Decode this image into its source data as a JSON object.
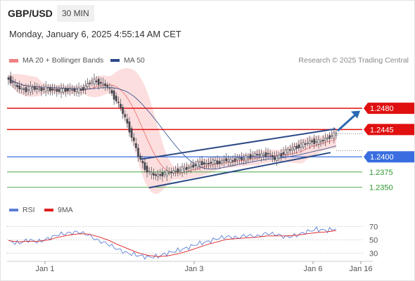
{
  "header": {
    "symbol": "GBP/USD",
    "timeframe": "30 MIN",
    "datetime": "Monday, January 6, 2025 4:55:14 AM CET"
  },
  "legend": {
    "ma20_label": "MA 20 + Bollinger Bands",
    "ma20_color": "#f08080",
    "ma50_label": "MA 50",
    "ma50_color": "#2a4a8a",
    "credit": "Research © 2025 Trading Central"
  },
  "rsi_legend": {
    "rsi_label": "RSI",
    "rsi_color": "#5b7fd6",
    "ma9_label": "9MA",
    "ma9_color": "#e02020"
  },
  "colors": {
    "candle_up": "#44474f",
    "candle_down": "#44474f",
    "resistance": "#e01010",
    "pivot": "#3a6ee0",
    "support": "#2e9a2e",
    "channel": "#2c4a86",
    "arrow": "#2a6ab0"
  },
  "chart_data": {
    "type": "candlestick",
    "price_range": [
      1.2325,
      1.2545
    ],
    "x_ticks": [
      "Jan 1",
      "Jan 3",
      "Jan 6",
      "Jan 16"
    ],
    "levels": [
      {
        "value": 1.248,
        "label": "1.2480",
        "kind": "resistance"
      },
      {
        "value": 1.2445,
        "label": "1.2445",
        "kind": "resistance"
      },
      {
        "value": 1.24,
        "label": "1.2400",
        "kind": "pivot"
      },
      {
        "value": 1.2375,
        "label": "1.2375",
        "kind": "support"
      },
      {
        "value": 1.235,
        "label": "1.2350",
        "kind": "support"
      }
    ],
    "close_path": [
      1.2529,
      1.2518,
      1.2512,
      1.251,
      1.2514,
      1.2511,
      1.2512,
      1.2511,
      1.2509,
      1.251,
      1.2511,
      1.2509,
      1.2512,
      1.2522,
      1.2525,
      1.2521,
      1.2516,
      1.25,
      1.2484,
      1.246,
      1.2432,
      1.2402,
      1.2382,
      1.2372,
      1.2369,
      1.2372,
      1.2374,
      1.2377,
      1.2379,
      1.2382,
      1.2386,
      1.239,
      1.2388,
      1.2392,
      1.239,
      1.2396,
      1.2392,
      1.2398,
      1.2396,
      1.2401,
      1.2404,
      1.2402,
      1.2406,
      1.2396,
      1.2404,
      1.241,
      1.2414,
      1.2418,
      1.2422,
      1.2426,
      1.2424,
      1.2428,
      1.2434,
      1.2438
    ],
    "rsi": {
      "range": [
        20,
        80
      ],
      "reference_levels": [
        30,
        50,
        70
      ],
      "rsi_path": [
        48,
        45,
        50,
        47,
        52,
        58,
        60,
        62,
        58,
        49,
        44,
        36,
        30,
        27,
        24,
        25,
        30,
        34,
        38,
        44,
        47,
        52,
        55,
        53,
        57,
        55,
        60,
        58,
        54,
        57,
        62,
        66,
        64,
        67
      ],
      "ma9_path": [
        49,
        47,
        48,
        48,
        50,
        54,
        57,
        59,
        59,
        55,
        50,
        43,
        37,
        31,
        27,
        25,
        26,
        29,
        33,
        38,
        43,
        47,
        51,
        52,
        53,
        54,
        56,
        56,
        56,
        57,
        59,
        61,
        62,
        64
      ]
    }
  }
}
